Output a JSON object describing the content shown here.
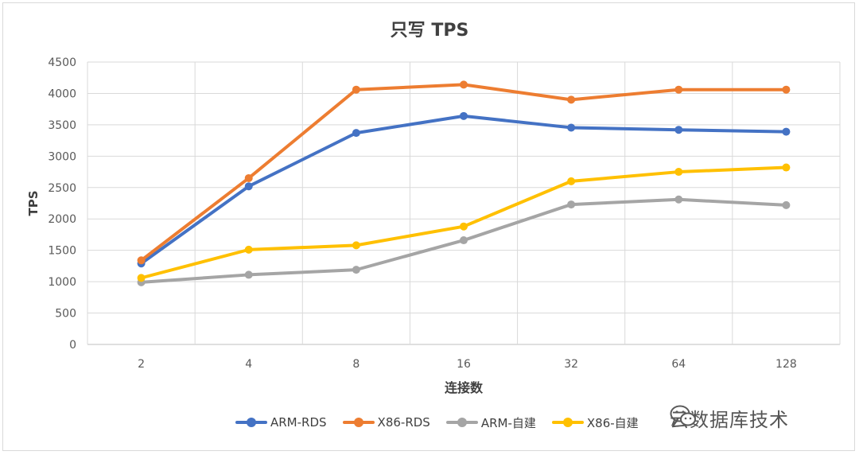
{
  "chart_data": {
    "type": "line",
    "title": "只写 TPS",
    "xlabel": "连接数",
    "ylabel": "TPS",
    "categories": [
      "2",
      "4",
      "8",
      "16",
      "32",
      "64",
      "128"
    ],
    "ylim": [
      0,
      4500
    ],
    "yticks": [
      0,
      500,
      1000,
      1500,
      2000,
      2500,
      3000,
      3500,
      4000,
      4500
    ],
    "grid": true,
    "legend_position": "bottom",
    "series": [
      {
        "name": "ARM-RDS",
        "color": "#4472c4",
        "values": [
          1290,
          2520,
          3370,
          3640,
          3455,
          3420,
          3390
        ]
      },
      {
        "name": "X86-RDS",
        "color": "#ed7d31",
        "values": [
          1340,
          2650,
          4060,
          4140,
          3900,
          4060,
          4060
        ]
      },
      {
        "name": "ARM-自建",
        "color": "#a5a5a5",
        "values": [
          990,
          1110,
          1190,
          1660,
          2230,
          2310,
          2220
        ]
      },
      {
        "name": "X86-自建",
        "color": "#ffc000",
        "values": [
          1060,
          1510,
          1580,
          1880,
          2600,
          2750,
          2820
        ]
      }
    ]
  },
  "watermark": {
    "text": "云数据库技术",
    "icon": "wechat-icon"
  }
}
